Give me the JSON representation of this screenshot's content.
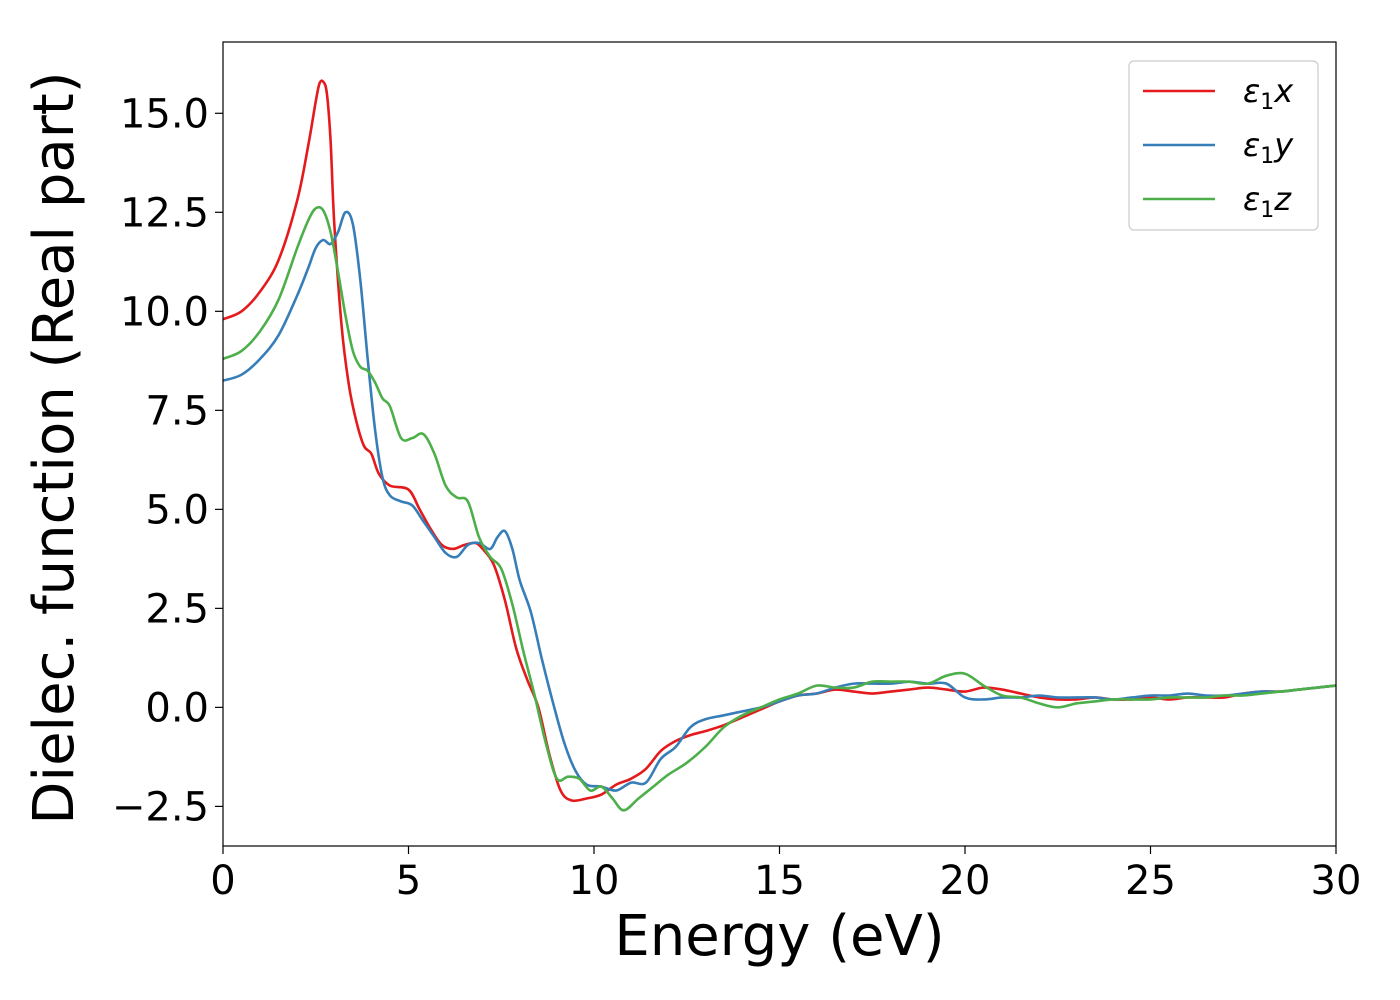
{
  "chart_data": {
    "type": "line",
    "xlabel": "Energy (eV)",
    "ylabel": "Dielec. function (Real part)",
    "xlim": [
      0,
      30
    ],
    "ylim": [
      -3.5,
      16.8
    ],
    "xticks": [
      0,
      5,
      10,
      15,
      20,
      25,
      30
    ],
    "xtick_labels": [
      "0",
      "5",
      "10",
      "15",
      "20",
      "25",
      "30"
    ],
    "yticks": [
      -2.5,
      0.0,
      2.5,
      5.0,
      7.5,
      10.0,
      12.5,
      15.0
    ],
    "ytick_labels": [
      "−2.5",
      "0.0",
      "2.5",
      "5.0",
      "7.5",
      "10.0",
      "12.5",
      "15.0"
    ],
    "grid": false,
    "legend_position": "top-right",
    "series": [
      {
        "name": "ε1x",
        "label_main": "ε",
        "label_sub": "1",
        "label_tail": "x",
        "color": "#e41a1c",
        "x": [
          0,
          0.5,
          1,
          1.5,
          2,
          2.3,
          2.5,
          2.6,
          2.7,
          2.8,
          2.9,
          3.0,
          3.2,
          3.4,
          3.6,
          3.8,
          4.0,
          4.2,
          4.5,
          5.0,
          5.3,
          5.6,
          5.9,
          6.2,
          6.5,
          6.8,
          7.0,
          7.3,
          7.6,
          7.9,
          8.2,
          8.5,
          8.8,
          9.1,
          9.4,
          9.8,
          10.2,
          10.6,
          11.0,
          11.4,
          11.8,
          12.2,
          12.6,
          13.0,
          13.5,
          14.0,
          14.5,
          15.0,
          15.5,
          16.0,
          16.5,
          17.0,
          17.5,
          18.0,
          18.5,
          19.0,
          19.5,
          20.0,
          20.5,
          21.0,
          21.5,
          22.0,
          22.5,
          23.0,
          23.5,
          24.0,
          24.5,
          25.0,
          25.5,
          26.0,
          26.5,
          27.0,
          27.5,
          28.0,
          28.5,
          29.0,
          29.5,
          30.0
        ],
        "y": [
          9.8,
          10.0,
          10.5,
          11.3,
          12.8,
          14.2,
          15.3,
          15.75,
          15.8,
          15.5,
          14.3,
          12.2,
          9.6,
          8.1,
          7.2,
          6.6,
          6.4,
          5.9,
          5.6,
          5.5,
          5.0,
          4.5,
          4.1,
          4.0,
          4.1,
          4.15,
          4.0,
          3.6,
          2.7,
          1.5,
          0.7,
          0.0,
          -1.2,
          -2.1,
          -2.35,
          -2.3,
          -2.2,
          -1.95,
          -1.8,
          -1.55,
          -1.1,
          -0.85,
          -0.7,
          -0.6,
          -0.45,
          -0.25,
          -0.05,
          0.15,
          0.3,
          0.35,
          0.45,
          0.4,
          0.35,
          0.4,
          0.45,
          0.5,
          0.45,
          0.4,
          0.5,
          0.45,
          0.35,
          0.25,
          0.2,
          0.2,
          0.25,
          0.2,
          0.2,
          0.25,
          0.2,
          0.25,
          0.25,
          0.25,
          0.35,
          0.4,
          0.4,
          0.45,
          0.5,
          0.55
        ]
      },
      {
        "name": "ε1y",
        "label_main": "ε",
        "label_sub": "1",
        "label_tail": "y",
        "color": "#377eb8",
        "x": [
          0,
          0.5,
          1,
          1.5,
          2,
          2.3,
          2.5,
          2.7,
          2.9,
          3.1,
          3.3,
          3.5,
          3.7,
          3.9,
          4.1,
          4.3,
          4.5,
          4.8,
          5.1,
          5.4,
          5.7,
          6.0,
          6.3,
          6.6,
          6.9,
          7.2,
          7.4,
          7.6,
          7.8,
          8.0,
          8.3,
          8.6,
          8.9,
          9.2,
          9.5,
          9.8,
          10.2,
          10.6,
          11.0,
          11.4,
          11.8,
          12.2,
          12.6,
          13.0,
          13.5,
          14.0,
          14.5,
          15.0,
          15.5,
          16.0,
          16.5,
          17.0,
          17.5,
          18.0,
          18.5,
          19.0,
          19.5,
          20.0,
          20.5,
          21.0,
          21.5,
          22.0,
          22.5,
          23.0,
          23.5,
          24.0,
          24.5,
          25.0,
          25.5,
          26.0,
          26.5,
          27.0,
          27.5,
          28.0,
          28.5,
          29.0,
          29.5,
          30.0
        ],
        "y": [
          8.25,
          8.4,
          8.8,
          9.4,
          10.4,
          11.1,
          11.6,
          11.8,
          11.7,
          12.0,
          12.5,
          12.2,
          10.8,
          8.8,
          7.0,
          5.8,
          5.35,
          5.2,
          5.1,
          4.7,
          4.3,
          3.9,
          3.8,
          4.1,
          4.15,
          4.0,
          4.3,
          4.45,
          4.0,
          3.2,
          2.4,
          1.2,
          0.1,
          -0.9,
          -1.6,
          -1.95,
          -2.0,
          -2.1,
          -1.9,
          -1.9,
          -1.3,
          -1.0,
          -0.5,
          -0.3,
          -0.2,
          -0.1,
          0.0,
          0.15,
          0.3,
          0.35,
          0.5,
          0.6,
          0.6,
          0.6,
          0.65,
          0.6,
          0.6,
          0.25,
          0.2,
          0.25,
          0.25,
          0.3,
          0.25,
          0.25,
          0.25,
          0.2,
          0.25,
          0.3,
          0.3,
          0.35,
          0.3,
          0.3,
          0.35,
          0.4,
          0.4,
          0.45,
          0.5,
          0.55
        ]
      },
      {
        "name": "ε1z",
        "label_main": "ε",
        "label_sub": "1",
        "label_tail": "z",
        "color": "#4daf4a",
        "x": [
          0,
          0.5,
          1,
          1.5,
          2,
          2.3,
          2.5,
          2.7,
          2.9,
          3.1,
          3.3,
          3.5,
          3.7,
          3.9,
          4.1,
          4.3,
          4.5,
          4.8,
          5.1,
          5.4,
          5.7,
          6.0,
          6.3,
          6.6,
          6.9,
          7.2,
          7.5,
          7.8,
          8.1,
          8.4,
          8.7,
          9.0,
          9.3,
          9.6,
          9.9,
          10.2,
          10.5,
          10.8,
          11.2,
          11.6,
          12.0,
          12.5,
          13.0,
          13.5,
          14.0,
          14.5,
          15.0,
          15.5,
          16.0,
          16.5,
          17.0,
          17.5,
          18.0,
          18.5,
          19.0,
          19.5,
          20.0,
          20.5,
          21.0,
          21.5,
          22.0,
          22.5,
          23.0,
          23.5,
          24.0,
          24.5,
          25.0,
          25.5,
          26.0,
          26.5,
          27.0,
          27.5,
          28.0,
          28.5,
          29.0,
          29.5,
          30.0
        ],
        "y": [
          8.8,
          9.0,
          9.5,
          10.3,
          11.6,
          12.3,
          12.6,
          12.55,
          12.0,
          11.0,
          9.9,
          9.0,
          8.6,
          8.5,
          8.2,
          7.8,
          7.6,
          6.8,
          6.8,
          6.9,
          6.4,
          5.6,
          5.3,
          5.2,
          4.3,
          3.8,
          3.5,
          2.6,
          1.4,
          0.3,
          -0.9,
          -1.8,
          -1.75,
          -1.8,
          -2.1,
          -2.0,
          -2.3,
          -2.6,
          -2.3,
          -2.0,
          -1.7,
          -1.4,
          -1.0,
          -0.5,
          -0.2,
          0.0,
          0.2,
          0.35,
          0.55,
          0.5,
          0.5,
          0.65,
          0.65,
          0.65,
          0.6,
          0.8,
          0.85,
          0.55,
          0.3,
          0.25,
          0.1,
          0.0,
          0.1,
          0.15,
          0.2,
          0.2,
          0.2,
          0.25,
          0.25,
          0.25,
          0.3,
          0.3,
          0.35,
          0.4,
          0.45,
          0.5,
          0.55
        ]
      }
    ]
  }
}
